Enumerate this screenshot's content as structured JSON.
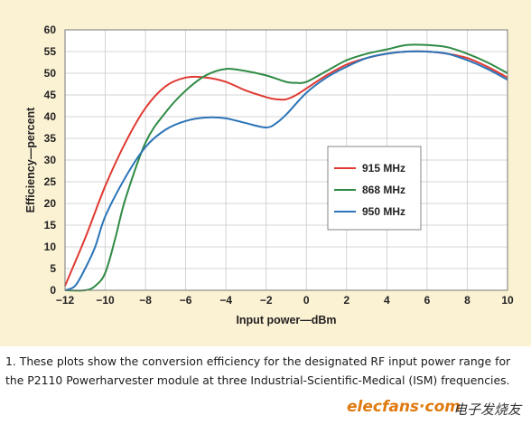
{
  "chart_data": {
    "type": "line",
    "title": "",
    "xlabel": "Input power—dBm",
    "ylabel": "Efficiency—percent",
    "xlim": [
      -12,
      10
    ],
    "ylim": [
      0,
      60
    ],
    "xticks": [
      -12,
      -10,
      -8,
      -6,
      -4,
      -2,
      0,
      2,
      4,
      6,
      8,
      10
    ],
    "yticks": [
      0,
      5,
      10,
      15,
      20,
      25,
      30,
      35,
      40,
      45,
      50,
      55,
      60
    ],
    "x_tick_labels": [
      "−12",
      "−10",
      "−8",
      "−6",
      "−4",
      "−2",
      "0",
      "2",
      "4",
      "6",
      "8",
      "10"
    ],
    "y_tick_labels": [
      "0",
      "5",
      "10",
      "15",
      "20",
      "25",
      "30",
      "35",
      "40",
      "45",
      "50",
      "55",
      "60"
    ],
    "grid": true,
    "legend_position": "center-right",
    "series": [
      {
        "name": "915 MHz",
        "color": "#e03a32",
        "x": [
          -12,
          -11,
          -10,
          -9,
          -8,
          -7,
          -6,
          -5,
          -4,
          -3,
          -2,
          -1.5,
          -1,
          -0.5,
          0,
          1,
          2,
          3,
          4,
          5,
          6,
          7,
          8,
          9,
          10
        ],
        "y": [
          1,
          12,
          24,
          34,
          42,
          47,
          49,
          49,
          48,
          46,
          44.5,
          44,
          44,
          45,
          46.5,
          49.5,
          52,
          53.5,
          54.5,
          55,
          55,
          54.5,
          53.5,
          51.5,
          49
        ]
      },
      {
        "name": "868 MHz",
        "color": "#2f8a45",
        "x": [
          -12,
          -11,
          -10.5,
          -10,
          -9.5,
          -9,
          -8,
          -7,
          -6,
          -5,
          -4,
          -3,
          -2,
          -1,
          -0.5,
          0,
          1,
          2,
          3,
          4,
          5,
          6,
          7,
          8,
          9,
          10
        ],
        "y": [
          0,
          0,
          1,
          4,
          12,
          21,
          34,
          41,
          46,
          49.5,
          51,
          50.5,
          49.5,
          48,
          47.8,
          48,
          50.5,
          53,
          54.5,
          55.5,
          56.5,
          56.5,
          56,
          54.5,
          52.5,
          50
        ]
      },
      {
        "name": "950 MHz",
        "color": "#2b74b8",
        "x": [
          -12,
          -11.5,
          -11,
          -10.5,
          -10,
          -9,
          -8,
          -7,
          -6,
          -5,
          -4,
          -3,
          -2,
          -1.5,
          -1,
          0,
          1,
          2,
          3,
          4,
          5,
          6,
          7,
          8,
          9,
          10
        ],
        "y": [
          0,
          1,
          5,
          10,
          17,
          26,
          33,
          37,
          39,
          39.8,
          39.6,
          38.5,
          37.5,
          38.5,
          40.5,
          45.5,
          49,
          51.5,
          53.5,
          54.5,
          55,
          55,
          54.5,
          53,
          51,
          48.5
        ]
      }
    ]
  },
  "caption": "1. These plots show the conversion efficiency for the designated RF input power range for the P2110 Powerharvester module at three Industrial-Scientific-Medical (ISM) frequencies.",
  "watermark": {
    "logo": "elecfans·com",
    "cn": "电子发烧友"
  },
  "colors": {
    "panel_background": "#fbf1d3",
    "plot_background": "#ffffff",
    "grid": "#c9c9c9"
  }
}
